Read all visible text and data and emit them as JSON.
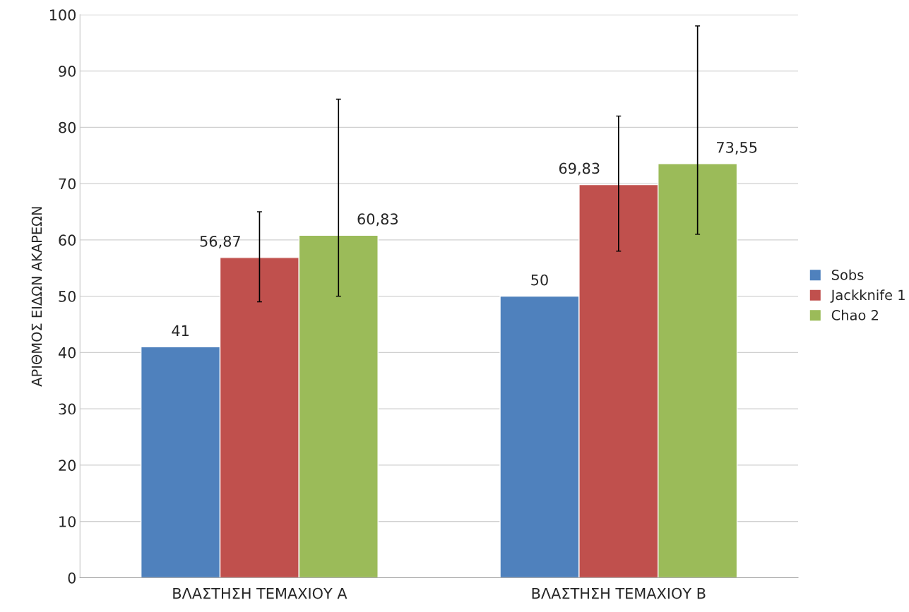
{
  "chart_data": {
    "type": "bar",
    "ylabel": "ΑΡΙΘΜΟΣ ΕΙΔΩΝ ΑΚΑΡΕΩΝ",
    "categories": [
      "ΒΛΑΣΤΗΣΗ ΤΕΜΑΧΙΟΥ Α",
      "ΒΛΑΣΤΗΣΗ ΤΕΜΑΧΙΟΥ Β"
    ],
    "series": [
      {
        "name": "Sobs",
        "color": "#4f81bd",
        "values": [
          41,
          50
        ],
        "value_labels": [
          "41",
          "50"
        ]
      },
      {
        "name": "Jackknife 1",
        "color": "#c0504d",
        "values": [
          56.87,
          69.83
        ],
        "value_labels": [
          "56,87",
          "69,83"
        ],
        "errors": [
          [
            49,
            65
          ],
          [
            58,
            82
          ]
        ]
      },
      {
        "name": "Chao 2",
        "color": "#9bbb59",
        "values": [
          60.83,
          73.55
        ],
        "value_labels": [
          "60,83",
          "73,55"
        ],
        "errors": [
          [
            50,
            85
          ],
          [
            61,
            98
          ]
        ]
      }
    ],
    "ylim": [
      0,
      100
    ],
    "yticks": [
      0,
      10,
      20,
      30,
      40,
      50,
      60,
      70,
      80,
      90,
      100
    ],
    "grid": "y",
    "legend": "right"
  }
}
